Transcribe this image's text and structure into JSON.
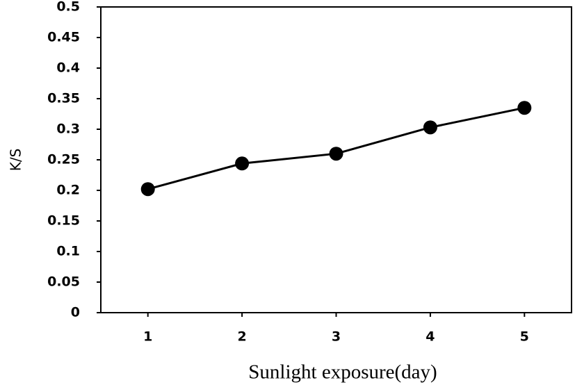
{
  "chart_data": {
    "type": "line",
    "y_label": "K/S",
    "x_label": "Sunlight exposure(day)",
    "categories": [
      "1",
      "2",
      "3",
      "4",
      "5"
    ],
    "series": [
      {
        "name": "K/S",
        "color": "#000000",
        "values": [
          0.202,
          0.244,
          0.26,
          0.303,
          0.335
        ]
      }
    ],
    "ylim": [
      0,
      0.5
    ],
    "yticks": [
      0,
      0.05,
      0.1,
      0.15,
      0.2,
      0.25,
      0.3,
      0.35,
      0.4,
      0.45,
      0.5
    ],
    "grid": false
  }
}
